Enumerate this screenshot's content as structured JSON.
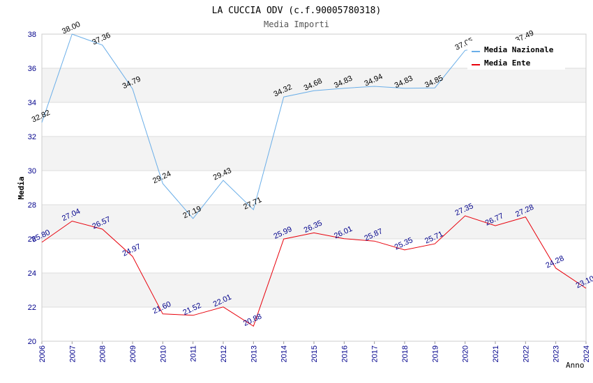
{
  "chart_data": {
    "type": "line",
    "title": "LA CUCCIA ODV (c.f.90005780318)",
    "subtitle": "Media Importi",
    "ylabel": "Media",
    "xlabel": "Anno",
    "ylim": [
      20,
      38
    ],
    "yticks": [
      20,
      22,
      24,
      26,
      28,
      30,
      32,
      34,
      36,
      38
    ],
    "categories": [
      "2006",
      "2007",
      "2008",
      "2009",
      "2010",
      "2011",
      "2012",
      "2013",
      "2014",
      "2015",
      "2016",
      "2017",
      "2018",
      "2019",
      "2020",
      "2021",
      "2022",
      "2023",
      "2024"
    ],
    "grid": true,
    "legend_position": "top-right",
    "series": [
      {
        "name": "Media Nazionale",
        "color": "#6aaee8",
        "values": [
          32.82,
          38.0,
          37.36,
          34.79,
          29.24,
          27.19,
          29.43,
          27.71,
          34.32,
          34.68,
          34.83,
          34.94,
          34.83,
          34.85,
          37.05,
          null,
          37.49,
          null,
          null
        ]
      },
      {
        "name": "Media Ente",
        "color": "#e8000b",
        "values": [
          25.8,
          27.04,
          26.57,
          24.97,
          21.6,
          21.52,
          22.01,
          20.88,
          25.99,
          26.35,
          26.01,
          25.87,
          25.35,
          25.71,
          27.35,
          26.77,
          27.28,
          24.28,
          23.1
        ]
      }
    ],
    "data_labels": {
      "naz": [
        "32.82",
        "38.00",
        "37.36",
        "34.79",
        "29.24",
        "27.19",
        "29.43",
        "27.71",
        "34.32",
        "34.68",
        "34.83",
        "34.94",
        "34.83",
        "34.85",
        "37.05",
        "",
        "37.49",
        "",
        ""
      ],
      "ente": [
        "25.80",
        "27.04",
        "26.57",
        "24.97",
        "21.60",
        "21.52",
        "22.01",
        "20.88",
        "25.99",
        "26.35",
        "26.01",
        "25.87",
        "25.35",
        "25.71",
        "27.35",
        "26.77",
        "27.28",
        "24.28",
        "23.10"
      ]
    }
  }
}
